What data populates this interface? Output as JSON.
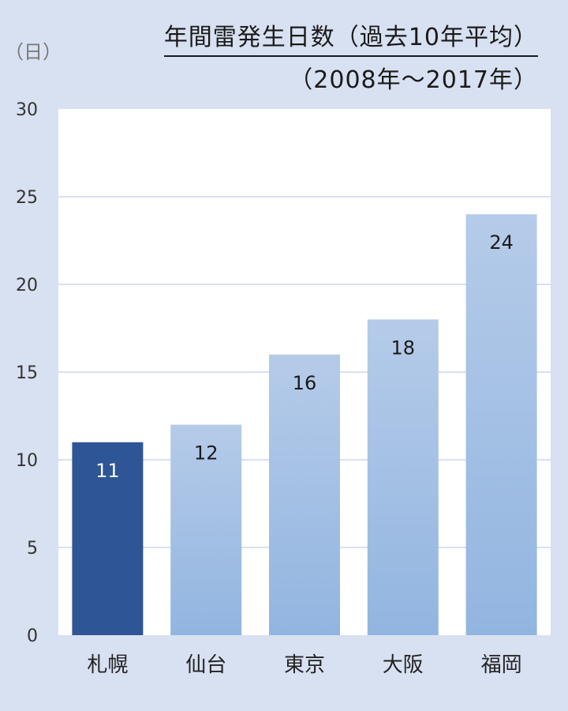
{
  "chart_data": {
    "type": "bar",
    "title": "年間雷発生日数（過去10年平均）",
    "subtitle": "（2008年〜2017年）",
    "ylabel": "（日）",
    "xlabel": "",
    "categories": [
      "札幌",
      "仙台",
      "東京",
      "大阪",
      "福岡"
    ],
    "values": [
      11,
      12,
      16,
      18,
      24
    ],
    "ylim": [
      0,
      30
    ],
    "yticks": [
      0,
      5,
      10,
      15,
      20,
      25,
      30
    ],
    "grid": true,
    "highlight_index": 0,
    "colors": {
      "highlight": "#2e5595",
      "bar_top": "#b5cbe9",
      "bar_bottom": "#92b5e0",
      "plot_bg": "#ffffff",
      "page_bg": "#d8e1f1",
      "grid": "#d8e1f1"
    }
  }
}
